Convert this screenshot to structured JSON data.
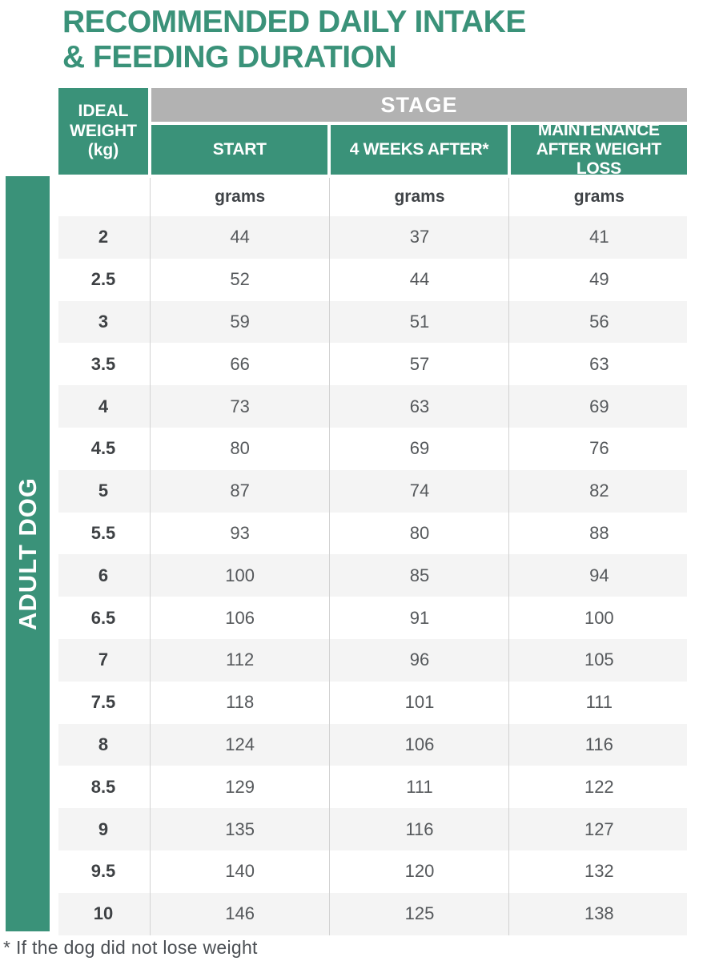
{
  "title": {
    "lines": [
      "RECOMMENDED DAILY INTAKE",
      "& FEEDING DURATION"
    ]
  },
  "sidebar": {
    "label": "ADULT DOG"
  },
  "table": {
    "corner_header_lines": [
      "IDEAL",
      "WEIGHT",
      "(kg)"
    ],
    "stage_header": "STAGE",
    "columns": [
      "START",
      "4 WEEKS AFTER*",
      "MAINTENANCE AFTER WEIGHT LOSS"
    ],
    "unit_label": "grams",
    "rows": [
      {
        "weight": "2",
        "start": "44",
        "after": "37",
        "maint": "41"
      },
      {
        "weight": "2.5",
        "start": "52",
        "after": "44",
        "maint": "49"
      },
      {
        "weight": "3",
        "start": "59",
        "after": "51",
        "maint": "56"
      },
      {
        "weight": "3.5",
        "start": "66",
        "after": "57",
        "maint": "63"
      },
      {
        "weight": "4",
        "start": "73",
        "after": "63",
        "maint": "69"
      },
      {
        "weight": "4.5",
        "start": "80",
        "after": "69",
        "maint": "76"
      },
      {
        "weight": "5",
        "start": "87",
        "after": "74",
        "maint": "82"
      },
      {
        "weight": "5.5",
        "start": "93",
        "after": "80",
        "maint": "88"
      },
      {
        "weight": "6",
        "start": "100",
        "after": "85",
        "maint": "94"
      },
      {
        "weight": "6.5",
        "start": "106",
        "after": "91",
        "maint": "100"
      },
      {
        "weight": "7",
        "start": "112",
        "after": "96",
        "maint": "105"
      },
      {
        "weight": "7.5",
        "start": "118",
        "after": "101",
        "maint": "111"
      },
      {
        "weight": "8",
        "start": "124",
        "after": "106",
        "maint": "116"
      },
      {
        "weight": "8.5",
        "start": "129",
        "after": "111",
        "maint": "122"
      },
      {
        "weight": "9",
        "start": "135",
        "after": "116",
        "maint": "127"
      },
      {
        "weight": "9.5",
        "start": "140",
        "after": "120",
        "maint": "132"
      },
      {
        "weight": "10",
        "start": "146",
        "after": "125",
        "maint": "138"
      }
    ]
  },
  "footnote": "* If the dog did not lose weight",
  "colors": {
    "brand_green": "#3a9279",
    "stage_gray": "#b2b2b2",
    "row_alt": "#f4f4f4",
    "text_dark": "#3e4144",
    "text_value": "#55585b"
  }
}
